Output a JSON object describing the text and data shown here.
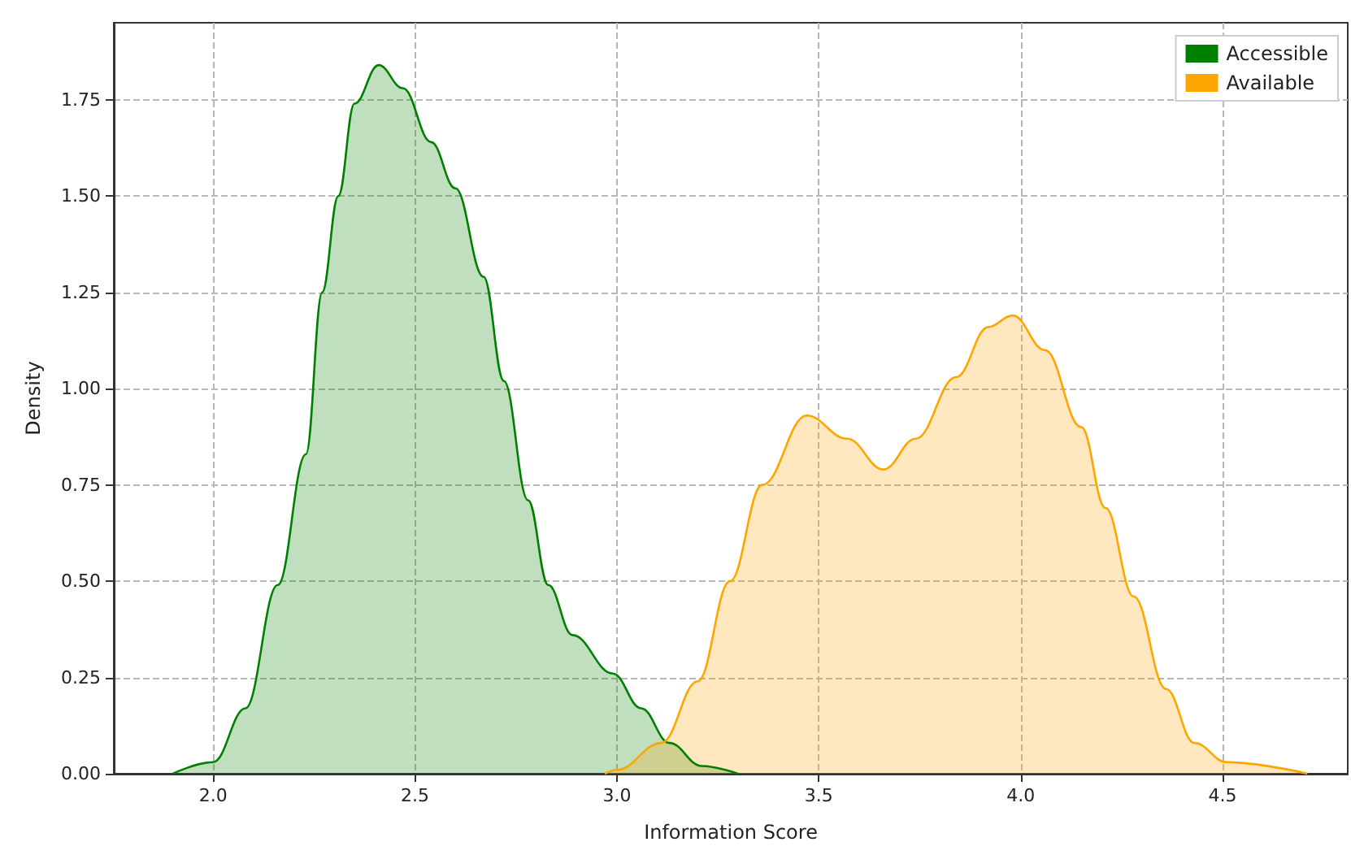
{
  "chart_data": {
    "type": "area",
    "xlabel": "Information Score",
    "ylabel": "Density",
    "xlim": [
      1.754,
      4.81
    ],
    "ylim": [
      0,
      1.95
    ],
    "xticks": [
      {
        "value": 2,
        "label": "2.0"
      },
      {
        "value": 2.5,
        "label": "2.5"
      },
      {
        "value": 3,
        "label": "3.0"
      },
      {
        "value": 3.5,
        "label": "3.5"
      },
      {
        "value": 4,
        "label": "4.0"
      },
      {
        "value": 4.5,
        "label": "4.5"
      }
    ],
    "yticks": [
      {
        "value": 0,
        "label": "0.00"
      },
      {
        "value": 0.25,
        "label": "0.25"
      },
      {
        "value": 0.5,
        "label": "0.50"
      },
      {
        "value": 0.75,
        "label": "0.75"
      },
      {
        "value": 1,
        "label": "1.00"
      },
      {
        "value": 1.25,
        "label": "1.25"
      },
      {
        "value": 1.5,
        "label": "1.50"
      },
      {
        "value": 1.75,
        "label": "1.75"
      }
    ],
    "grid": true,
    "legend": "top right",
    "line_style": "solid",
    "marker": "none",
    "series": [
      {
        "name": "Accessible",
        "color": "#008000",
        "x": [
          1.9,
          2.0,
          2.08,
          2.16,
          2.23,
          2.27,
          2.31,
          2.35,
          2.41,
          2.47,
          2.54,
          2.6,
          2.67,
          2.72,
          2.78,
          2.83,
          2.89,
          2.99,
          3.06,
          3.13,
          3.21,
          3.3
        ],
        "values": [
          0,
          0.03,
          0.17,
          0.49,
          0.83,
          1.25,
          1.5,
          1.74,
          1.84,
          1.78,
          1.64,
          1.52,
          1.29,
          1.02,
          0.71,
          0.49,
          0.36,
          0.26,
          0.17,
          0.08,
          0.02,
          0
        ]
      },
      {
        "name": "Available",
        "color": "#ffa500",
        "x": [
          2.97,
          3.0,
          3.11,
          3.2,
          3.28,
          3.36,
          3.47,
          3.57,
          3.66,
          3.74,
          3.84,
          3.92,
          3.98,
          4.06,
          4.15,
          4.21,
          4.28,
          4.36,
          4.43,
          4.51,
          4.71
        ],
        "values": [
          0,
          0.01,
          0.08,
          0.24,
          0.5,
          0.75,
          0.93,
          0.87,
          0.79,
          0.87,
          1.03,
          1.16,
          1.19,
          1.1,
          0.9,
          0.69,
          0.46,
          0.22,
          0.08,
          0.03,
          0
        ]
      }
    ]
  }
}
